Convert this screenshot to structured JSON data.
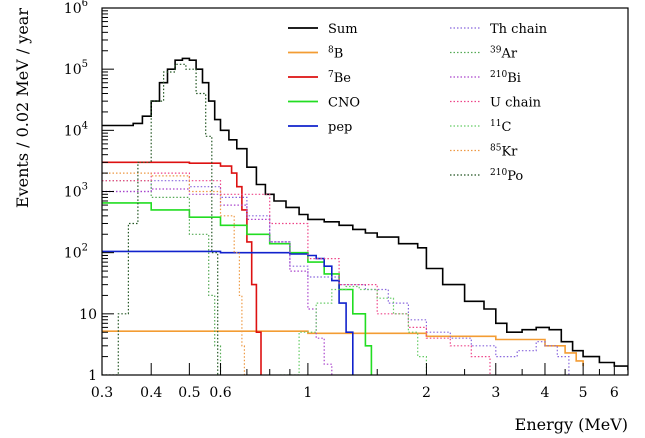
{
  "chart_data": {
    "type": "line",
    "xlabel": "Energy (MeV)",
    "ylabel": "Events / 0.02 MeV / year",
    "xscale": "log",
    "yscale": "log",
    "xlim": [
      0.3,
      6.5
    ],
    "ylim": [
      1,
      1000000
    ],
    "grid": false,
    "legend_placement": "top-right, two columns",
    "x_tick_labels": [
      {
        "value": 0.3,
        "label": "0.3"
      },
      {
        "value": 0.4,
        "label": "0.4"
      },
      {
        "value": 0.5,
        "label": "0.5"
      },
      {
        "value": 0.6,
        "label": "0.6"
      },
      {
        "value": 1,
        "label": "1"
      },
      {
        "value": 2,
        "label": "2"
      },
      {
        "value": 3,
        "label": "3"
      },
      {
        "value": 4,
        "label": "4"
      },
      {
        "value": 5,
        "label": "5"
      },
      {
        "value": 6,
        "label": "6"
      }
    ],
    "y_tick_labels": [
      {
        "value": 1,
        "label": "1"
      },
      {
        "value": 10,
        "label": "10"
      },
      {
        "value": 100,
        "label": "10",
        "exp": "2"
      },
      {
        "value": 1000,
        "label": "10",
        "exp": "3"
      },
      {
        "value": 10000,
        "label": "10",
        "exp": "4"
      },
      {
        "value": 100000,
        "label": "10",
        "exp": "5"
      },
      {
        "value": 1000000,
        "label": "10",
        "exp": "6"
      }
    ],
    "series": [
      {
        "name": "Sum",
        "color": "#000000",
        "dash": "solid",
        "x": [
          0.3,
          0.36,
          0.38,
          0.4,
          0.42,
          0.44,
          0.46,
          0.48,
          0.5,
          0.52,
          0.54,
          0.56,
          0.58,
          0.6,
          0.63,
          0.66,
          0.7,
          0.74,
          0.78,
          0.82,
          0.88,
          0.95,
          1.0,
          1.1,
          1.2,
          1.3,
          1.4,
          1.5,
          1.7,
          1.9,
          2.0,
          2.2,
          2.5,
          2.8,
          3.0,
          3.2,
          3.5,
          3.8,
          4.1,
          4.4,
          4.7,
          5.0,
          5.5,
          6.0,
          6.5
        ],
        "y": [
          12000,
          13000,
          17000,
          30000,
          60000,
          100000,
          140000,
          150000,
          140000,
          100000,
          60000,
          30000,
          15000,
          10000,
          7000,
          5000,
          2500,
          1300,
          900,
          700,
          550,
          420,
          350,
          320,
          280,
          240,
          210,
          180,
          140,
          120,
          55,
          30,
          16,
          12,
          7,
          5,
          5.5,
          6,
          5.5,
          3.5,
          2.5,
          2.0,
          1.6,
          1.4,
          1.2
        ]
      },
      {
        "name": "8B",
        "label": "B",
        "sup": "8",
        "color": "#f39c33",
        "dash": "solid",
        "x": [
          0.3,
          1.0,
          2.0,
          3.0,
          4.0,
          4.5,
          4.8,
          5.0
        ],
        "y": [
          5.2,
          4.8,
          4.3,
          3.8,
          3.0,
          2.3,
          1.7,
          1.4
        ]
      },
      {
        "name": "7Be",
        "label": "Be",
        "sup": "7",
        "color": "#dd1111",
        "dash": "solid",
        "x": [
          0.3,
          0.5,
          0.6,
          0.64,
          0.66,
          0.68,
          0.7,
          0.72,
          0.74,
          0.76
        ],
        "y": [
          3000,
          2900,
          2600,
          2000,
          1200,
          500,
          150,
          30,
          5,
          1
        ]
      },
      {
        "name": "CNO",
        "label": "CNO",
        "color": "#22dd22",
        "dash": "solid",
        "x": [
          0.3,
          0.4,
          0.5,
          0.6,
          0.7,
          0.8,
          0.9,
          1.0,
          1.1,
          1.2,
          1.3,
          1.4,
          1.45
        ],
        "y": [
          650,
          500,
          380,
          280,
          200,
          140,
          100,
          70,
          45,
          25,
          10,
          3,
          1
        ]
      },
      {
        "name": "pep",
        "label": "pep",
        "color": "#1122cc",
        "dash": "solid",
        "x": [
          0.3,
          0.6,
          0.9,
          1.0,
          1.05,
          1.1,
          1.15,
          1.2,
          1.25,
          1.3
        ],
        "y": [
          105,
          100,
          95,
          90,
          80,
          60,
          35,
          15,
          5,
          1
        ]
      },
      {
        "name": "Th chain",
        "label": "Th chain",
        "color": "#8866dd",
        "dash": "dotted",
        "x": [
          0.3,
          0.4,
          0.5,
          0.6,
          0.7,
          0.8,
          0.9,
          1.0,
          1.2,
          1.4,
          1.6,
          1.8,
          2.0,
          2.3,
          2.6,
          3.0,
          3.4,
          3.8,
          4.0,
          4.3,
          4.6
        ],
        "y": [
          1000,
          1500,
          1200,
          800,
          400,
          150,
          60,
          40,
          30,
          25,
          15,
          8,
          5,
          4,
          3,
          2,
          2.5,
          3.5,
          3,
          2,
          1
        ]
      },
      {
        "name": "39Ar",
        "label": "Ar",
        "sup": "39",
        "color": "#55aa55",
        "dash": "dotted",
        "x": [
          0.3,
          0.4,
          0.5,
          0.56,
          0.58,
          0.6
        ],
        "y": [
          1500,
          800,
          200,
          20,
          3,
          1
        ]
      },
      {
        "name": "210Bi",
        "label": "Bi",
        "sup": "210",
        "color": "#aa44cc",
        "dash": "dotted",
        "x": [
          0.3,
          0.4,
          0.5,
          0.6,
          0.7,
          0.8,
          0.9,
          1.0,
          1.05,
          1.1,
          1.15
        ],
        "y": [
          1000,
          1100,
          900,
          600,
          350,
          150,
          50,
          12,
          4,
          1.5,
          1
        ]
      },
      {
        "name": "U chain",
        "label": "U chain",
        "color": "#ee4488",
        "dash": "dotted",
        "x": [
          0.3,
          0.4,
          0.5,
          0.6,
          0.8,
          1.0,
          1.2,
          1.5,
          1.8,
          2.0,
          2.3,
          2.6,
          2.9
        ],
        "y": [
          1500,
          2000,
          1500,
          900,
          300,
          80,
          30,
          10,
          6,
          4,
          3,
          2,
          1
        ]
      },
      {
        "name": "11C",
        "label": "C",
        "sup": "11",
        "color": "#66cc66",
        "dash": "dotted",
        "x": [
          0.85,
          0.95,
          1.05,
          1.15,
          1.25,
          1.35,
          1.5,
          1.65,
          1.8,
          1.9,
          2.0
        ],
        "y": [
          1,
          5,
          15,
          25,
          28,
          25,
          18,
          10,
          5,
          2,
          1
        ]
      },
      {
        "name": "85Kr",
        "label": "Kr",
        "sup": "85",
        "color": "#ee9944",
        "dash": "dotted",
        "x": [
          0.3,
          0.4,
          0.5,
          0.6,
          0.65,
          0.67,
          0.68,
          0.69
        ],
        "y": [
          2000,
          1800,
          1000,
          400,
          100,
          20,
          3,
          1
        ]
      },
      {
        "name": "210Po",
        "label": "Po",
        "sup": "210",
        "color": "#225522",
        "dash": "dotted",
        "x": [
          0.3,
          0.33,
          0.35,
          0.37,
          0.4,
          0.43,
          0.46,
          0.49,
          0.52,
          0.55,
          0.57,
          0.59
        ],
        "y": [
          1,
          10,
          300,
          3000,
          30000,
          90000,
          120000,
          100000,
          40000,
          8000,
          100,
          1
        ]
      }
    ]
  }
}
